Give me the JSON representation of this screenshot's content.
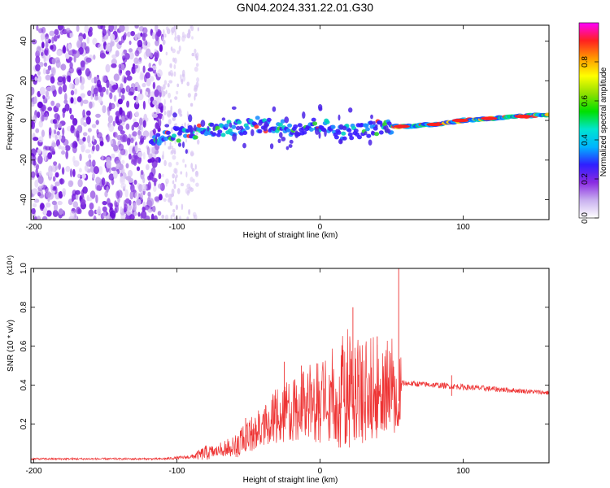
{
  "title": "GN04.2024.331.22.01.G30",
  "chart_data": [
    {
      "type": "heatmap",
      "name": "spectrogram",
      "xlabel": "Height of straight line (km)",
      "ylabel": "Frequency (Hz)",
      "xlim": [
        -202,
        160
      ],
      "ylim": [
        -50,
        48
      ],
      "xticks": [
        -200,
        -100,
        0,
        100
      ],
      "xtick_labels": [
        "-200",
        "-100",
        "0",
        "100"
      ],
      "yticks": [
        -40,
        -20,
        0,
        20,
        40
      ],
      "ytick_labels": [
        "-40",
        "-20",
        "0",
        "20",
        "40"
      ],
      "colorbar": {
        "label": "Normalized spectral amplitude",
        "range": [
          0,
          1
        ],
        "ticks": [
          0.0,
          0.2,
          0.4,
          0.6,
          0.8
        ],
        "tick_labels": [
          "0.0",
          "0.2",
          "0.4",
          "0.6",
          "0.8"
        ],
        "colors": [
          "#ffffff",
          "#c9b0ef",
          "#8a2be2",
          "#2f1fff",
          "#00b4ff",
          "#00e5d0",
          "#00e000",
          "#8fe000",
          "#ffff00",
          "#ff9900",
          "#ff2020",
          "#ff00ff"
        ]
      },
      "ridge": {
        "x": [
          -115,
          -100,
          -80,
          -60,
          -45,
          -30,
          -15,
          0,
          15,
          30,
          45,
          60,
          80,
          100,
          120,
          140,
          160
        ],
        "y": [
          -10,
          -7,
          -5,
          -4,
          -2,
          -3,
          -4,
          -2,
          -6,
          -5,
          -3,
          -3,
          -2,
          0,
          1,
          2,
          3
        ]
      }
    },
    {
      "type": "line",
      "name": "snr",
      "xlabel": "Height of straight line (km)",
      "ylabel": "SNR (10 * v/v)",
      "scale_label": "(x10⁴)",
      "xlim": [
        -202,
        160
      ],
      "ylim": [
        0,
        1.0
      ],
      "xticks": [
        -200,
        -100,
        0,
        100
      ],
      "xtick_labels": [
        "-200",
        "-100",
        "0",
        "100"
      ],
      "yticks": [
        0.2,
        0.4,
        0.6,
        0.8,
        1.0
      ],
      "ytick_labels": [
        "0.2",
        "0.4",
        "0.6",
        "0.8",
        "1.0"
      ],
      "color": "#ee3333",
      "envelope": {
        "x": [
          -202,
          -110,
          -90,
          -80,
          -70,
          -60,
          -50,
          -40,
          -30,
          -20,
          -10,
          0,
          10,
          20,
          30,
          40,
          50,
          56,
          57,
          80,
          100,
          120,
          140,
          160
        ],
        "base": [
          0.02,
          0.02,
          0.03,
          0.05,
          0.06,
          0.07,
          0.12,
          0.18,
          0.22,
          0.25,
          0.27,
          0.28,
          0.3,
          0.33,
          0.33,
          0.34,
          0.36,
          0.37,
          0.41,
          0.4,
          0.39,
          0.38,
          0.37,
          0.36
        ],
        "spread": [
          0.005,
          0.005,
          0.01,
          0.04,
          0.03,
          0.05,
          0.07,
          0.09,
          0.12,
          0.14,
          0.16,
          0.18,
          0.22,
          0.26,
          0.24,
          0.22,
          0.2,
          0.24,
          0.015,
          0.015,
          0.015,
          0.015,
          0.012,
          0.012
        ]
      },
      "spikes": [
        {
          "x": -52,
          "y": 0.23
        },
        {
          "x": -25,
          "y": 0.52
        },
        {
          "x": -13,
          "y": 0.5
        },
        {
          "x": 23,
          "y": 0.8
        },
        {
          "x": 40,
          "y": 0.65
        },
        {
          "x": 55,
          "y": 1.0
        },
        {
          "x": 92,
          "y": 0.45
        }
      ]
    }
  ]
}
